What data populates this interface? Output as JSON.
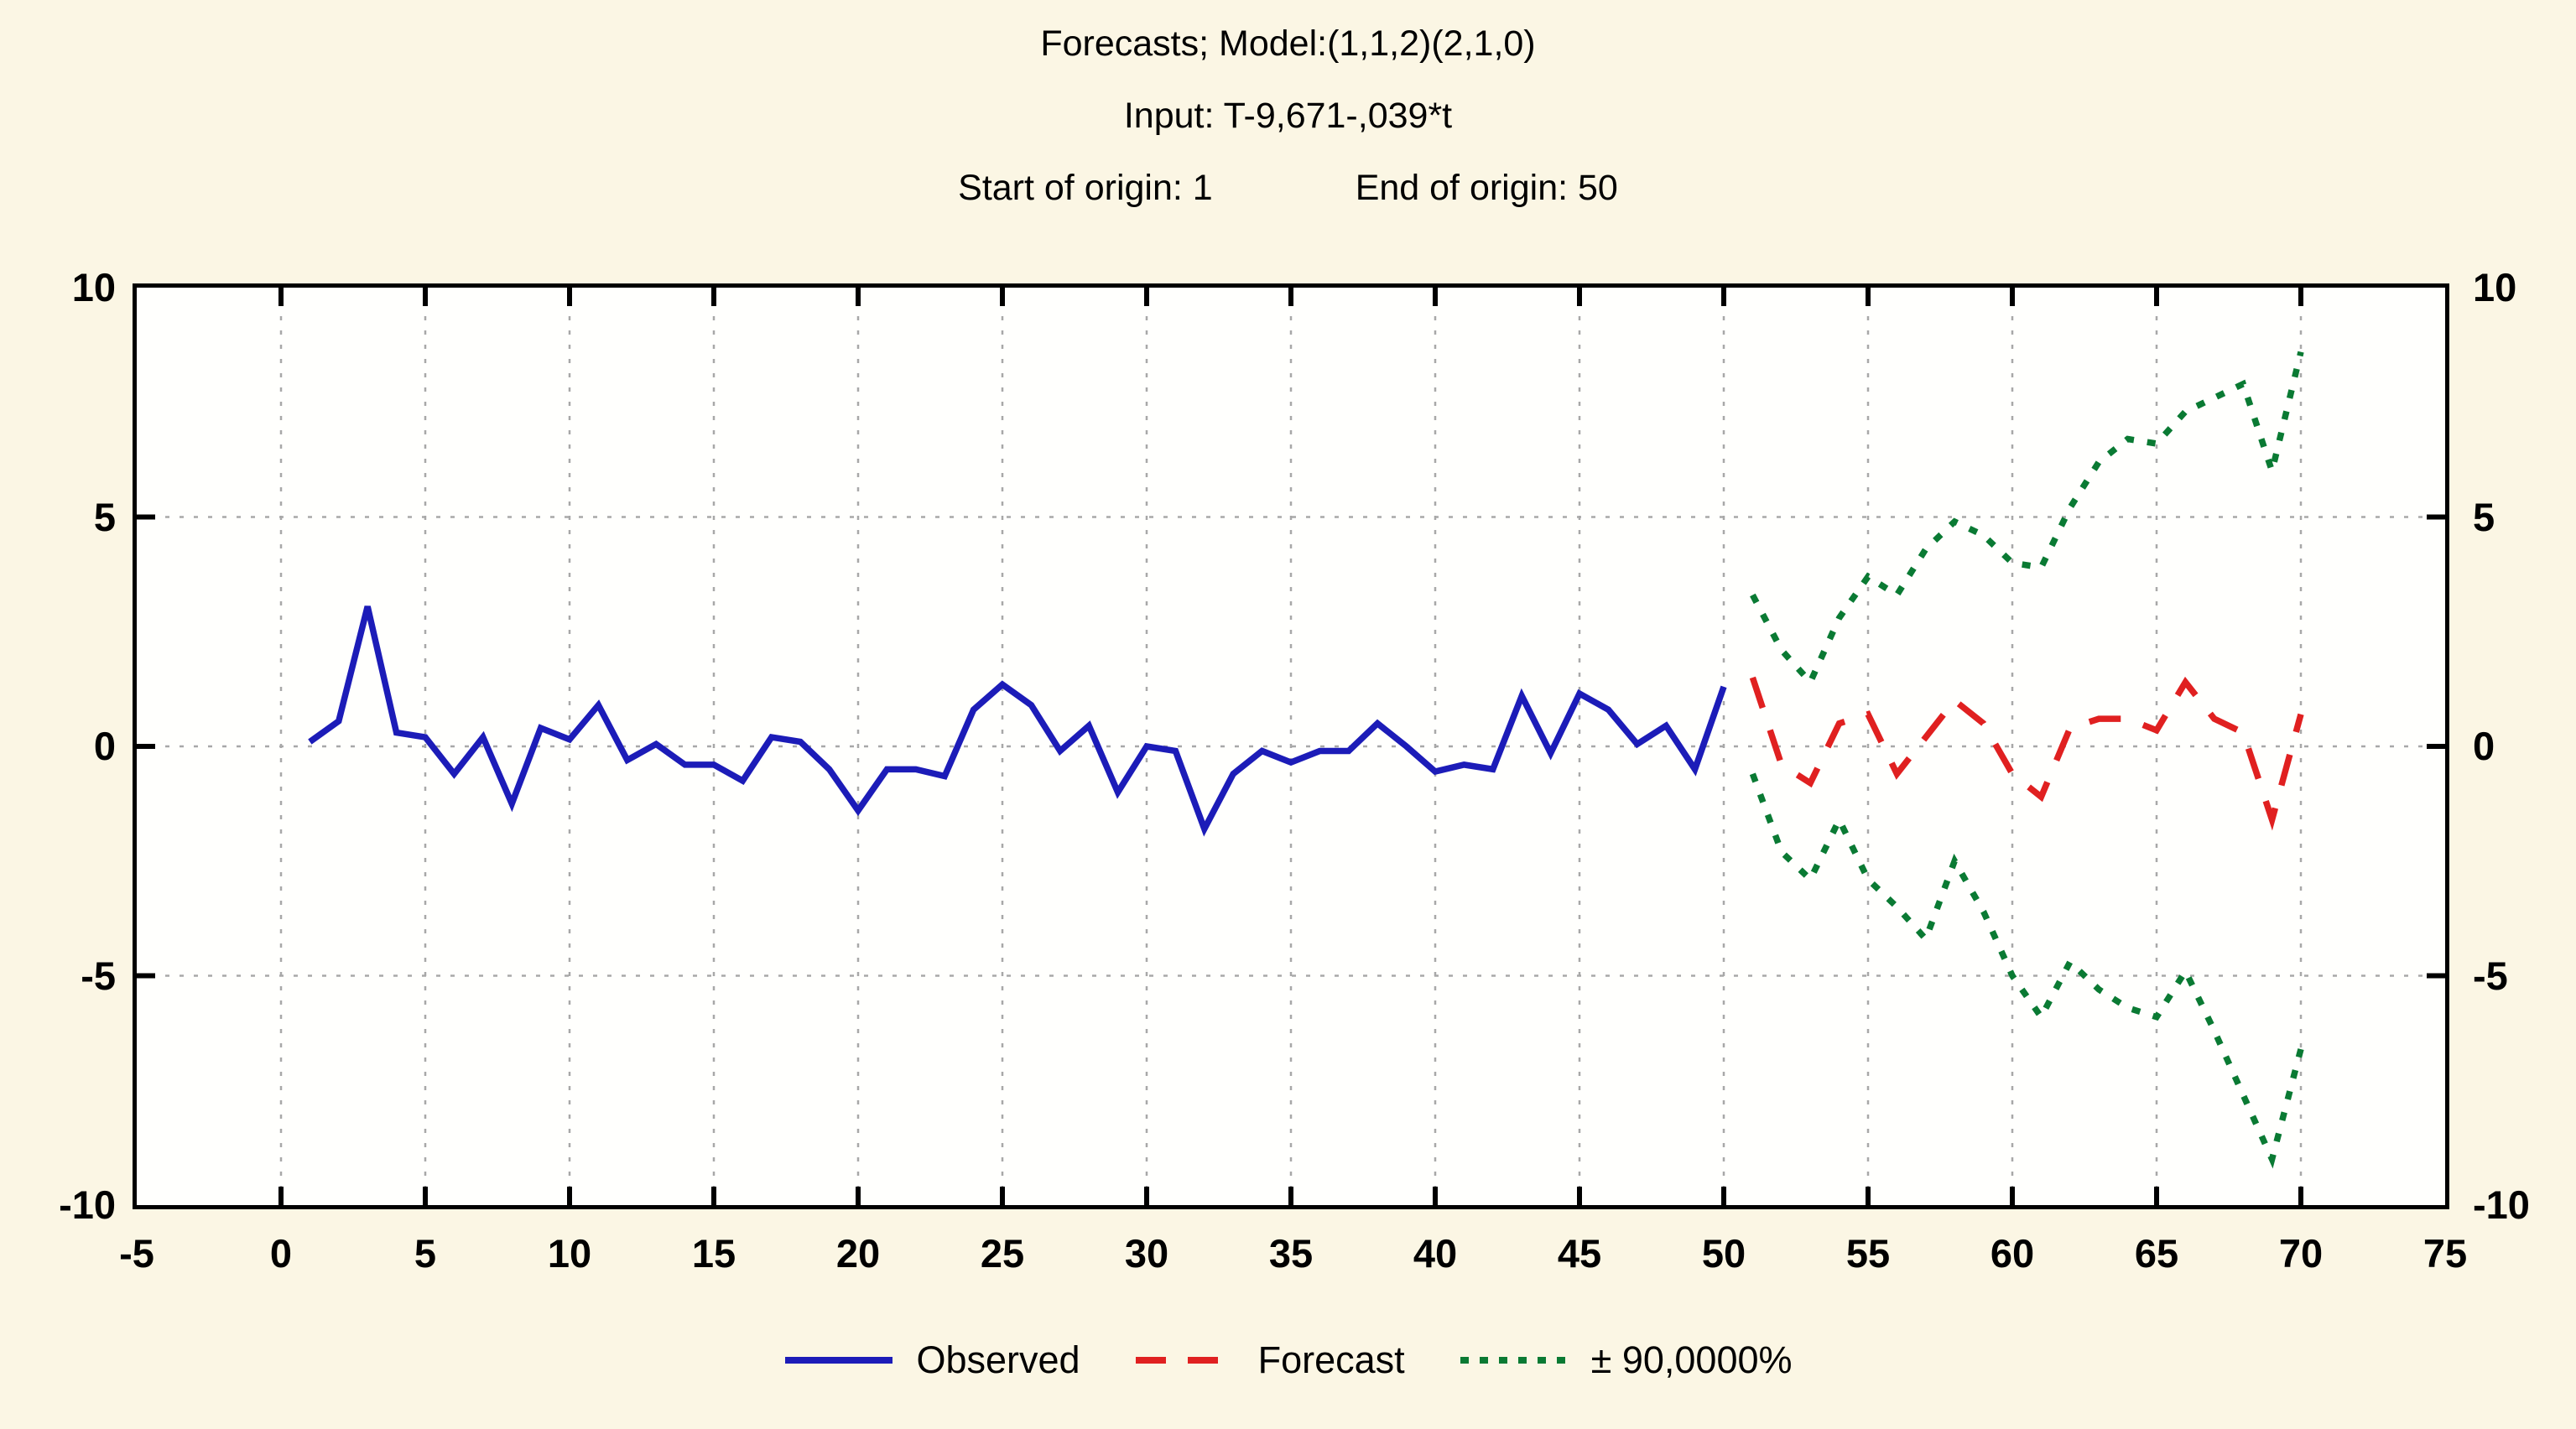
{
  "title": {
    "line1": "Forecasts; Model:(1,1,2)(2,1,0)",
    "line2": "Input: T-9,671-,039*t",
    "origin_start": "Start of origin: 1",
    "origin_end": "End of origin: 50"
  },
  "legend": {
    "items": [
      {
        "label": "Observed",
        "color": "#1c1cb8",
        "style": "solid"
      },
      {
        "label": "Forecast",
        "color": "#e02020",
        "style": "dashed"
      },
      {
        "label": "± 90,0000%",
        "color": "#0a7a33",
        "style": "dotted"
      }
    ]
  },
  "axes": {
    "x_tick_labels": [
      "-5",
      "0",
      "5",
      "10",
      "15",
      "20",
      "25",
      "30",
      "35",
      "40",
      "45",
      "50",
      "55",
      "60",
      "65",
      "70",
      "75"
    ],
    "y_tick_labels": [
      "10",
      "5",
      "0",
      "-5",
      "-10"
    ],
    "y_tick_values": [
      10,
      5,
      0,
      -5,
      -10
    ],
    "grid_color": "#a8a8a8",
    "tick_color": "#000000"
  },
  "chart_data": {
    "type": "line",
    "title": "Forecasts; Model:(1,1,2)(2,1,0)",
    "subtitle": "Input: T-9,671-,039*t",
    "annotations": [
      "Start of origin: 1",
      "End of origin: 50"
    ],
    "xlim": [
      -5,
      75
    ],
    "ylim": [
      -10,
      10
    ],
    "x_gridlines": [
      0,
      5,
      10,
      15,
      20,
      25,
      30,
      35,
      40,
      45,
      50,
      55,
      60,
      65,
      70
    ],
    "y_gridlines": [
      5,
      0,
      -5
    ],
    "grid": true,
    "legend_position": "bottom",
    "series": [
      {
        "name": "Observed",
        "color": "#1c1cb8",
        "style": "solid",
        "x_start": 1,
        "values": [
          0.1,
          0.55,
          3.05,
          0.3,
          0.2,
          -0.6,
          0.2,
          -1.25,
          0.4,
          0.15,
          0.9,
          -0.3,
          0.05,
          -0.4,
          -0.4,
          -0.75,
          0.2,
          0.1,
          -0.5,
          -1.4,
          -0.5,
          -0.5,
          -0.65,
          0.8,
          1.35,
          0.9,
          -0.1,
          0.45,
          -1.0,
          0.0,
          -0.1,
          -1.8,
          -0.6,
          -0.1,
          -0.35,
          -0.1,
          -0.1,
          0.5,
          0.0,
          -0.55,
          -0.4,
          -0.5,
          1.1,
          -0.15,
          1.15,
          0.8,
          0.05,
          0.45,
          -0.5,
          1.3
        ]
      },
      {
        "name": "Forecast",
        "color": "#e02020",
        "style": "dashed",
        "x_start": 51,
        "values": [
          1.5,
          -0.4,
          -0.8,
          0.5,
          0.7,
          -0.6,
          0.2,
          1.0,
          0.5,
          -0.6,
          -1.1,
          0.4,
          0.6,
          0.6,
          0.35,
          1.4,
          0.6,
          0.3,
          -1.6,
          0.7
        ]
      },
      {
        "name": "+90% band",
        "color": "#0a7a33",
        "style": "dotted",
        "x_start": 51,
        "values": [
          3.3,
          2.1,
          1.4,
          2.8,
          3.7,
          3.3,
          4.3,
          4.9,
          4.6,
          4.0,
          3.9,
          5.2,
          6.2,
          6.7,
          6.6,
          7.3,
          7.6,
          7.9,
          6.0,
          8.6
        ]
      },
      {
        "name": "-90% band",
        "color": "#0a7a33",
        "style": "dotted",
        "x_start": 51,
        "values": [
          -0.6,
          -2.3,
          -2.9,
          -1.6,
          -2.9,
          -3.5,
          -4.2,
          -2.5,
          -3.6,
          -5.0,
          -5.9,
          -4.7,
          -5.3,
          -5.7,
          -5.9,
          -4.9,
          -6.2,
          -7.6,
          -9.0,
          -6.6
        ]
      }
    ]
  }
}
